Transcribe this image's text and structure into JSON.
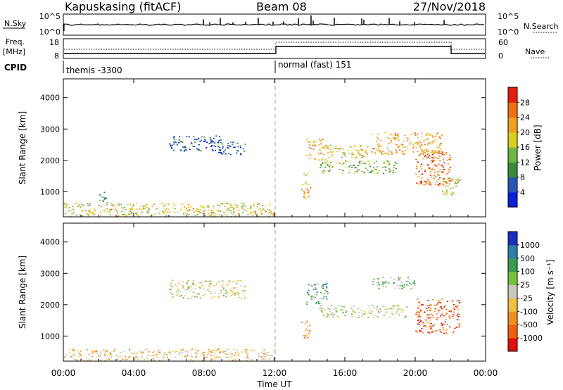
{
  "header": {
    "station": "Kapuskasing (fitACF)",
    "beam": "Beam 08",
    "date": "27/Nov/2018"
  },
  "noise_panel": {
    "left_label": "N.Sky",
    "right_label": "N.Search",
    "left_ticks": [
      "10^5",
      "10^0"
    ],
    "right_ticks": [
      "10^5",
      "10^0"
    ]
  },
  "freq_panel": {
    "left_label_line1": "Freq.",
    "left_label_line2": "[MHz]",
    "right_label": "Nave",
    "left_ticks": [
      "18",
      "8"
    ],
    "right_ticks": [
      "60",
      "0"
    ]
  },
  "cpid": {
    "label": "CPID",
    "segments": [
      {
        "start_hour": 0,
        "text": "themis -3300"
      },
      {
        "start_hour": 12,
        "text": "normal (fast) 151"
      }
    ]
  },
  "chart_data": [
    {
      "type": "heatmap",
      "name_param": "power",
      "ylabel": "Slant Range [km]",
      "xlabel": "Time UT",
      "x_range_hours": [
        0,
        24
      ],
      "ylim": [
        200,
        4600
      ],
      "yticks": [
        1000,
        2000,
        3000,
        4000
      ],
      "colorbar": {
        "label": "Power [dB]",
        "ticks": [
          "4",
          "8",
          "12",
          "16",
          "20",
          "24",
          "28"
        ],
        "colors": [
          "#0a1fd6",
          "#2a55b8",
          "#3a8a3a",
          "#6fb544",
          "#d8d020",
          "#f0a020",
          "#f07010",
          "#e02010"
        ]
      },
      "regions": [
        {
          "t0": 0.0,
          "t1": 12.0,
          "r0": 220,
          "r1": 650,
          "level": 4
        },
        {
          "t0": 2.0,
          "t1": 2.5,
          "r0": 600,
          "r1": 1000,
          "level": 2
        },
        {
          "t0": 6.0,
          "t1": 9.0,
          "r0": 2300,
          "r1": 2800,
          "level": 1
        },
        {
          "t0": 8.7,
          "t1": 10.3,
          "r0": 2200,
          "r1": 2600,
          "level": 1
        },
        {
          "t0": 13.5,
          "t1": 14.0,
          "r0": 800,
          "r1": 1600,
          "level": 5
        },
        {
          "t0": 13.8,
          "t1": 15.0,
          "r0": 2000,
          "r1": 2700,
          "level": 5
        },
        {
          "t0": 14.5,
          "t1": 19.0,
          "r0": 1600,
          "r1": 2000,
          "level": 3
        },
        {
          "t0": 15.0,
          "t1": 17.5,
          "r0": 2100,
          "r1": 2500,
          "level": 4
        },
        {
          "t0": 17.5,
          "t1": 21.5,
          "r0": 2200,
          "r1": 2900,
          "level": 5
        },
        {
          "t0": 20.0,
          "t1": 22.0,
          "r0": 1200,
          "r1": 2300,
          "level": 6
        },
        {
          "t0": 21.5,
          "t1": 22.5,
          "r0": 900,
          "r1": 1500,
          "level": 4
        }
      ]
    },
    {
      "type": "heatmap",
      "name_param": "velocity",
      "ylabel": "Slant Range [km]",
      "xlabel": "Time UT",
      "x_range_hours": [
        0,
        24
      ],
      "ylim": [
        200,
        4600
      ],
      "yticks": [
        1000,
        2000,
        3000,
        4000
      ],
      "colorbar": {
        "label": "Velocity [m s⁻¹]",
        "ticks": [
          "1000",
          "500",
          "100",
          "25",
          "-25",
          "-100",
          "-500",
          "-1000"
        ],
        "colors": [
          "#1a2fc0",
          "#2f7fa8",
          "#3a9a50",
          "#7ac040",
          "#c8c8c0",
          "#f0c040",
          "#f09020",
          "#f06010",
          "#e01010"
        ]
      },
      "regions": [
        {
          "t0": 0.0,
          "t1": 12.0,
          "r0": 220,
          "r1": 600,
          "level": 5
        },
        {
          "t0": 6.0,
          "t1": 10.3,
          "r0": 2200,
          "r1": 2800,
          "level": 4
        },
        {
          "t0": 13.5,
          "t1": 14.0,
          "r0": 900,
          "r1": 1500,
          "level": 6
        },
        {
          "t0": 13.8,
          "t1": 15.0,
          "r0": 2000,
          "r1": 2700,
          "level": 2
        },
        {
          "t0": 14.5,
          "t1": 19.5,
          "r0": 1600,
          "r1": 2000,
          "level": 4
        },
        {
          "t0": 17.5,
          "t1": 20.0,
          "r0": 2500,
          "r1": 2900,
          "level": 3
        },
        {
          "t0": 20.0,
          "t1": 22.5,
          "r0": 1100,
          "r1": 2200,
          "level": 7
        }
      ]
    }
  ],
  "x_ticks": [
    "00:00",
    "04:00",
    "08:00",
    "12:00",
    "16:00",
    "20:00",
    "00:00"
  ],
  "x_axis_label": "Time UT"
}
